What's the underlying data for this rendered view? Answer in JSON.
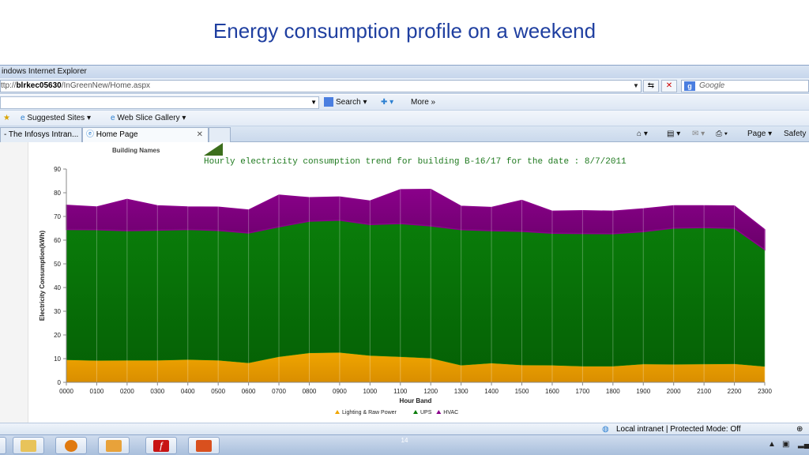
{
  "slide": {
    "title": "Energy consumption profile on a weekend",
    "page_number": "14"
  },
  "browser": {
    "window_title": "indows Internet Explorer",
    "url_prefix": "ttp://",
    "url_host": "blrkec05630",
    "url_path": "/InGreenNew/Home.aspx",
    "search_placeholder": "Google",
    "toolbar": {
      "search_label": "Search ▾",
      "more_label": "More »"
    },
    "favorites": [
      {
        "label": "Suggested Sites ▾"
      },
      {
        "label": "Web Slice Gallery ▾"
      }
    ],
    "tabs": [
      {
        "label": "- The Infosys Intran..."
      },
      {
        "label": "Home Page"
      }
    ],
    "commands": {
      "page_label": "Page ▾",
      "safety_label": "Safety"
    },
    "status": "Local intranet | Protected Mode: Off"
  },
  "content": {
    "building_names_label": "Building Names",
    "chart_title": "Hourly electricity consumption trend for building B-16/17 for the date : 8/7/2011"
  },
  "colors": {
    "lighting": "#f0a500",
    "ups": "#0a7d0a",
    "hvac": "#8a008a"
  },
  "chart_data": {
    "type": "area",
    "title": "Hourly electricity consumption trend for building B-16/17 for the date : 8/7/2011",
    "xlabel": "Hour Band",
    "ylabel": "Electricity Consumption(kWh)",
    "ylim": [
      0,
      90
    ],
    "yticks": [
      0,
      10,
      20,
      30,
      40,
      50,
      60,
      70,
      80,
      90
    ],
    "stacked": true,
    "grid": true,
    "legend": "bottom",
    "categories": [
      "0000",
      "0100",
      "0200",
      "0300",
      "0400",
      "0500",
      "0600",
      "0700",
      "0800",
      "0900",
      "1000",
      "1100",
      "1200",
      "1300",
      "1400",
      "1500",
      "1600",
      "1700",
      "1800",
      "1900",
      "2000",
      "2100",
      "2200",
      "2300"
    ],
    "series": [
      {
        "name": "Lighting & Raw Power",
        "values": [
          9.5,
          9.2,
          9.3,
          9.3,
          9.6,
          9.3,
          8.2,
          10.8,
          12.4,
          12.6,
          11.3,
          10.8,
          10.2,
          7.2,
          8.1,
          7.3,
          7.2,
          6.8,
          6.8,
          7.7,
          7.6,
          7.7,
          7.8,
          6.7
        ]
      },
      {
        "name": "UPS",
        "values": [
          55.0,
          55.2,
          54.7,
          54.9,
          54.9,
          54.8,
          54.8,
          54.8,
          55.6,
          55.8,
          55.3,
          56.2,
          55.8,
          57.2,
          55.9,
          56.4,
          55.7,
          56.0,
          55.9,
          55.9,
          57.5,
          57.6,
          57.2,
          49.3
        ]
      },
      {
        "name": "HVAC",
        "values": [
          10.2,
          9.6,
          13.2,
          10.3,
          9.5,
          9.8,
          9.7,
          13.4,
          9.9,
          9.8,
          9.9,
          14.3,
          15.4,
          9.9,
          9.8,
          13.1,
          9.3,
          9.6,
          9.5,
          9.6,
          9.4,
          9.2,
          9.4,
          8.4
        ]
      }
    ]
  }
}
